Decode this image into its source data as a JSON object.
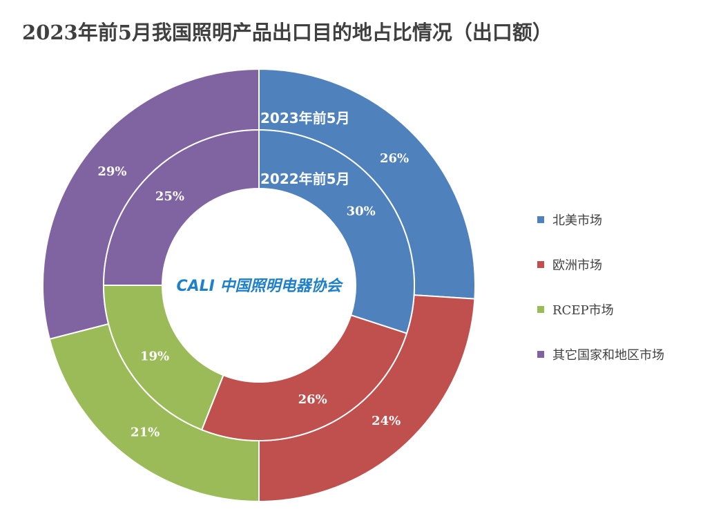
{
  "chart_data": {
    "type": "pie",
    "subtype": "donut",
    "title": "2023年前5月我国照明产品出口目的地占比情况（出口额）",
    "categories": [
      "北美市场",
      "欧洲市场",
      "RCEP市场",
      "其它国家和地区市场"
    ],
    "colors": [
      "#4F81BD",
      "#C0504D",
      "#9BBB59",
      "#8064A2"
    ],
    "series": [
      {
        "name": "2023年前5月",
        "ring": "outer",
        "values": [
          26,
          24,
          21,
          29
        ],
        "labels": [
          "26%",
          "24%",
          "21%",
          "29%"
        ]
      },
      {
        "name": "2022年前5月",
        "ring": "inner",
        "values": [
          30,
          26,
          19,
          25
        ],
        "labels": [
          "30%",
          "26%",
          "19%",
          "25%"
        ]
      }
    ],
    "legend_position": "right"
  },
  "logo": {
    "text": "CALI 中国照明电器协会",
    "color": "#1E7FCB"
  }
}
